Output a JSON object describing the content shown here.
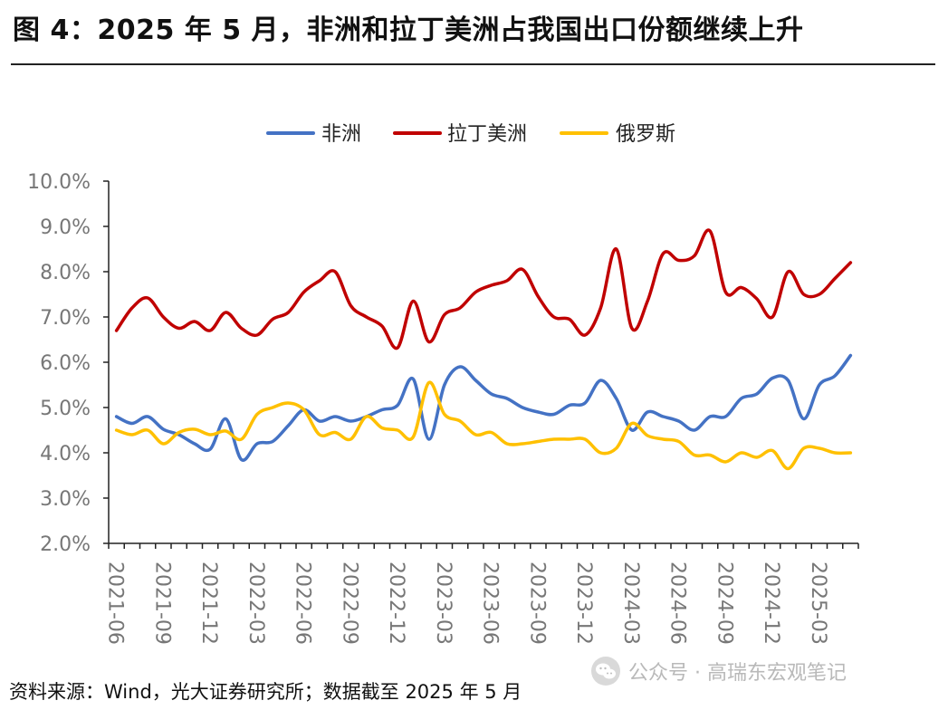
{
  "header": {
    "title": "图 4：2025 年 5 月，非洲和拉丁美洲占我国出口份额继续上升"
  },
  "footer": {
    "source": "资料来源：Wind，光大证券研究所；数据截至 2025 年 5 月",
    "watermark_text": "公众号 · 高瑞东宏观笔记"
  },
  "chart_data": {
    "type": "line",
    "title": "",
    "xlabel": "",
    "ylabel": "",
    "ylim": [
      0.02,
      0.1
    ],
    "y_ticks": [
      "2.0%",
      "3.0%",
      "4.0%",
      "5.0%",
      "6.0%",
      "7.0%",
      "8.0%",
      "9.0%",
      "10.0%"
    ],
    "x_tick_labels": [
      "2021-06",
      "2021-09",
      "2021-12",
      "2022-03",
      "2022-06",
      "2022-09",
      "2022-12",
      "2023-03",
      "2023-06",
      "2023-09",
      "2023-12",
      "2024-03",
      "2024-06",
      "2024-09",
      "2024-12",
      "2025-03"
    ],
    "legend_position": "top-center",
    "grid": false,
    "x": [
      "2021-06",
      "2021-07",
      "2021-08",
      "2021-09",
      "2021-10",
      "2021-11",
      "2021-12",
      "2022-01",
      "2022-02",
      "2022-03",
      "2022-04",
      "2022-05",
      "2022-06",
      "2022-07",
      "2022-08",
      "2022-09",
      "2022-10",
      "2022-11",
      "2022-12",
      "2023-01",
      "2023-02",
      "2023-03",
      "2023-04",
      "2023-05",
      "2023-06",
      "2023-07",
      "2023-08",
      "2023-09",
      "2023-10",
      "2023-11",
      "2023-12",
      "2024-01",
      "2024-02",
      "2024-03",
      "2024-04",
      "2024-05",
      "2024-06",
      "2024-07",
      "2024-08",
      "2024-09",
      "2024-10",
      "2024-11",
      "2024-12",
      "2025-01",
      "2025-02",
      "2025-03",
      "2025-04",
      "2025-05"
    ],
    "series": [
      {
        "name": "非洲",
        "color": "#4472C4",
        "values": [
          0.048,
          0.0465,
          0.048,
          0.0452,
          0.044,
          0.042,
          0.0408,
          0.0475,
          0.0385,
          0.042,
          0.0425,
          0.046,
          0.0495,
          0.047,
          0.048,
          0.047,
          0.048,
          0.0495,
          0.0505,
          0.0563,
          0.043,
          0.055,
          0.059,
          0.056,
          0.053,
          0.052,
          0.05,
          0.049,
          0.0485,
          0.0505,
          0.051,
          0.056,
          0.052,
          0.045,
          0.049,
          0.048,
          0.047,
          0.045,
          0.048,
          0.048,
          0.052,
          0.053,
          0.0565,
          0.056,
          0.0475,
          0.055,
          0.057,
          0.0615
        ]
      },
      {
        "name": "拉丁美洲",
        "color": "#C00000",
        "values": [
          0.067,
          0.072,
          0.0742,
          0.07,
          0.0675,
          0.069,
          0.067,
          0.071,
          0.0675,
          0.066,
          0.0695,
          0.071,
          0.0755,
          0.078,
          0.08,
          0.0725,
          0.07,
          0.068,
          0.0632,
          0.0735,
          0.0645,
          0.0705,
          0.072,
          0.0755,
          0.077,
          0.078,
          0.0805,
          0.0745,
          0.07,
          0.0695,
          0.066,
          0.072,
          0.085,
          0.0675,
          0.0735,
          0.084,
          0.0825,
          0.0835,
          0.089,
          0.0755,
          0.0765,
          0.074,
          0.07,
          0.08,
          0.075,
          0.075,
          0.0785,
          0.082
        ]
      },
      {
        "name": "俄罗斯",
        "color": "#FFC000",
        "values": [
          0.045,
          0.044,
          0.045,
          0.042,
          0.0445,
          0.0452,
          0.044,
          0.0448,
          0.043,
          0.0485,
          0.05,
          0.051,
          0.0495,
          0.044,
          0.0445,
          0.043,
          0.048,
          0.0455,
          0.045,
          0.0435,
          0.0555,
          0.0485,
          0.047,
          0.044,
          0.0445,
          0.042,
          0.042,
          0.0425,
          0.043,
          0.043,
          0.043,
          0.04,
          0.041,
          0.0465,
          0.0438,
          0.043,
          0.0425,
          0.0395,
          0.0395,
          0.038,
          0.04,
          0.039,
          0.0405,
          0.0365,
          0.041,
          0.041,
          0.04,
          0.04
        ]
      }
    ]
  }
}
